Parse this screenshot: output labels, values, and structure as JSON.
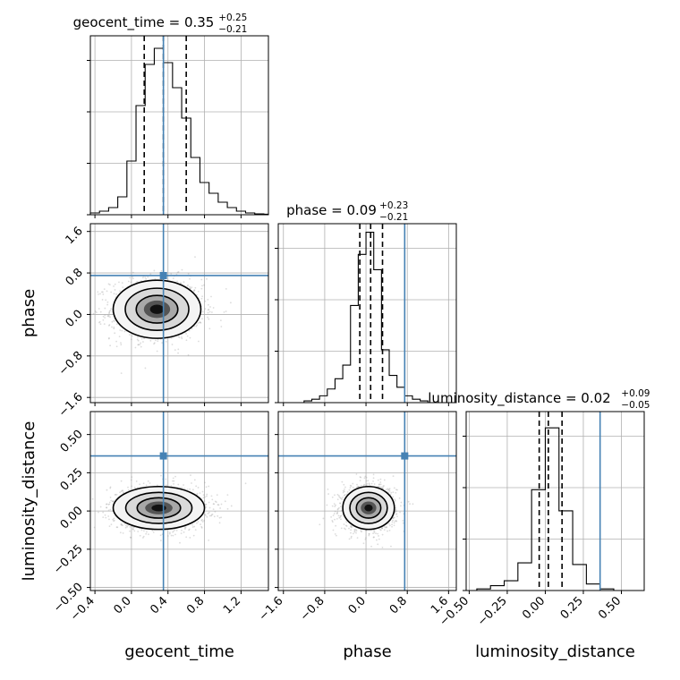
{
  "chart_data": {
    "type": "corner",
    "colors": {
      "truth": "#4682b4",
      "hist": "#000000",
      "grid": "#b0b0b0",
      "point": "#9a9a9a"
    },
    "parameters": [
      {
        "name": "geocent_time",
        "axis_label": "geocent_time",
        "median": "0.35",
        "plus": "+0.25",
        "minus": "−0.21",
        "title_prefix": "geocent_time = ",
        "range": [
          -0.45,
          1.5
        ],
        "truth": 0.35,
        "quantiles": [
          0.14,
          0.35,
          0.6
        ],
        "ticks": [
          -0.4,
          0.0,
          0.4,
          0.8,
          1.2
        ],
        "tick_labels": [
          "−0.4",
          "0.0",
          "0.4",
          "0.8",
          "1.2"
        ],
        "hist": {
          "edges": [
            -0.45,
            -0.35,
            -0.25,
            -0.15,
            -0.05,
            0.05,
            0.15,
            0.25,
            0.35,
            0.45,
            0.55,
            0.65,
            0.75,
            0.85,
            0.95,
            1.05,
            1.15,
            1.25,
            1.35,
            1.45,
            1.5
          ],
          "counts": [
            1,
            2,
            4,
            10,
            30,
            61,
            84,
            93,
            85,
            71,
            54,
            32,
            18,
            12,
            7,
            4,
            2,
            1,
            0.5,
            0.3
          ],
          "ylim": [
            0,
            100
          ]
        }
      },
      {
        "name": "phase",
        "axis_label": "phase",
        "median": "0.09",
        "plus": "+0.23",
        "minus": "−0.21",
        "title_prefix": "phase = ",
        "range": [
          -1.7,
          1.75
        ],
        "truth": 0.75,
        "quantiles": [
          -0.12,
          0.09,
          0.32
        ],
        "ticks": [
          -1.6,
          -0.8,
          0.0,
          0.8,
          1.6
        ],
        "tick_labels": [
          "−1.6",
          "−0.8",
          "0.0",
          "0.8",
          "1.6"
        ],
        "hist": {
          "edges": [
            -1.2,
            -1.05,
            -0.9,
            -0.75,
            -0.6,
            -0.45,
            -0.3,
            -0.15,
            0.0,
            0.15,
            0.3,
            0.45,
            0.6,
            0.75,
            0.9,
            1.05,
            1.2
          ],
          "counts": [
            1,
            2,
            4,
            8,
            14,
            22,
            57,
            87,
            100,
            78,
            31,
            16,
            9,
            4,
            2,
            1
          ],
          "ylim": [
            0,
            105
          ]
        }
      },
      {
        "name": "luminosity_distance",
        "axis_label": "luminosity_distance",
        "median": "0.02",
        "plus": "+0.09",
        "minus": "−0.05",
        "title_prefix": "luminosity_distance = ",
        "range": [
          -0.52,
          0.65
        ],
        "truth": 0.36,
        "quantiles": [
          -0.04,
          0.02,
          0.11
        ],
        "ticks": [
          -0.5,
          -0.25,
          0.0,
          0.25,
          0.5
        ],
        "tick_labels": [
          "−0.50",
          "−0.25",
          "0.00",
          "0.25",
          "0.50"
        ],
        "side_tick_labels": [
          "−0.50",
          "−0.25",
          "0.00",
          "0.25",
          "0.50"
        ],
        "hist": {
          "edges": [
            -0.45,
            -0.36,
            -0.27,
            -0.18,
            -0.09,
            0.0,
            0.09,
            0.18,
            0.27,
            0.36,
            0.45
          ],
          "counts": [
            1,
            3,
            6,
            17,
            62,
            100,
            49,
            16,
            4,
            1
          ],
          "ylim": [
            0,
            110
          ]
        }
      }
    ],
    "phase_side_tick_labels": [
      "1.6",
      "0.8",
      "0.0",
      "−0.8",
      "−1.6"
    ],
    "contours": [
      {
        "x": "geocent_time",
        "y": "phase",
        "center": [
          0.28,
          0.1
        ],
        "sigma": [
          0.24,
          0.28
        ]
      },
      {
        "x": "geocent_time",
        "y": "luminosity_distance",
        "center": [
          0.3,
          0.02
        ],
        "sigma": [
          0.25,
          0.07
        ]
      },
      {
        "x": "phase",
        "y": "luminosity_distance",
        "center": [
          0.05,
          0.02
        ],
        "sigma": [
          0.25,
          0.07
        ]
      }
    ],
    "grid": true
  }
}
